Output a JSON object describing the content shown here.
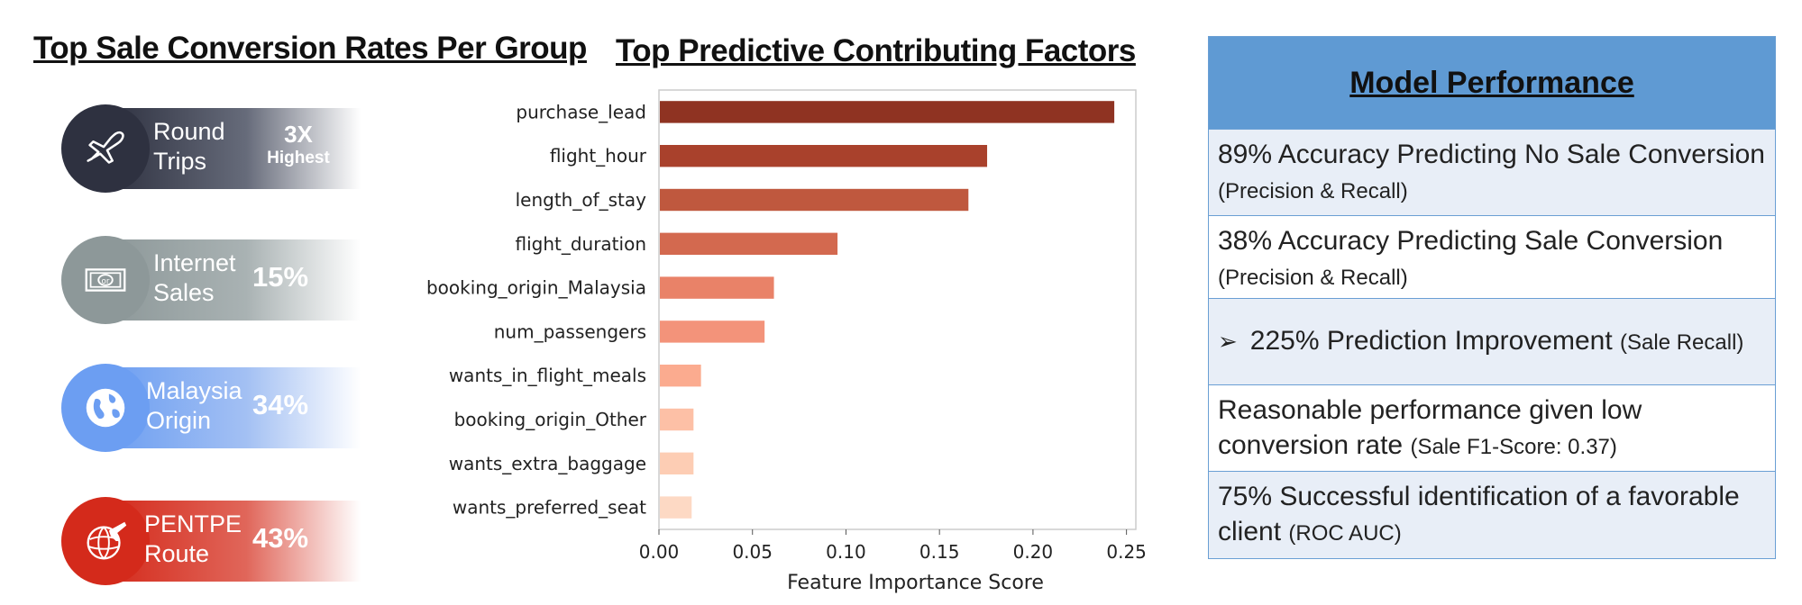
{
  "left_panel": {
    "title": "Top Sale Conversion Rates Per Group",
    "groups": [
      {
        "label_line1": "Round",
        "label_line2": "Trips",
        "stat_big": "3X",
        "stat_small": "Highest",
        "color": "#2e3140",
        "icon": "airplane-icon"
      },
      {
        "label_line1": "Internet",
        "label_line2": "Sales",
        "stat": "15%",
        "color": "#8d9899",
        "icon": "money-icon"
      },
      {
        "label_line1": "Malaysia",
        "label_line2": "Origin",
        "stat": "34%",
        "color": "#6c9ef2",
        "icon": "globe-icon"
      },
      {
        "label_line1": "PENTPE",
        "label_line2": "Route",
        "stat": "43%",
        "color": "#d42a1b",
        "icon": "globe-plane-icon"
      }
    ]
  },
  "chart_data": {
    "type": "bar",
    "orientation": "horizontal",
    "title": "Top Predictive Contributing Factors",
    "xlabel": "Feature Importance Score",
    "ylabel": "",
    "xlim": [
      0,
      0.255
    ],
    "xticks": [
      "0.00",
      "0.05",
      "0.10",
      "0.15",
      "0.20",
      "0.25"
    ],
    "categories": [
      "purchase_lead",
      "flight_hour",
      "length_of_stay",
      "flight_duration",
      "booking_origin_Malaysia",
      "num_passengers",
      "wants_in_flight_meals",
      "booking_origin_Other",
      "wants_extra_baggage",
      "wants_preferred_seat"
    ],
    "values": [
      0.243,
      0.175,
      0.165,
      0.095,
      0.061,
      0.056,
      0.022,
      0.018,
      0.018,
      0.017
    ],
    "colors": [
      "#8f3322",
      "#a9412c",
      "#bf583e",
      "#d3694f",
      "#e98268",
      "#f3937a",
      "#fbab8f",
      "#fdc0a6",
      "#fdcdb4",
      "#fdd9c4"
    ],
    "grid": false
  },
  "performance": {
    "title": "Model Performance",
    "rows": [
      {
        "main": "89% Accuracy Predicting No Sale Conversion",
        "note": "(Precision & Recall)"
      },
      {
        "main": "38% Accuracy Predicting Sale Conversion",
        "note": "(Precision & Recall)"
      },
      {
        "bullet": "➢",
        "main": "225% Prediction Improvement",
        "note": "(Sale Recall)"
      },
      {
        "main": "Reasonable performance given low conversion rate",
        "note": "(Sale F1-Score: 0.37)"
      },
      {
        "main": "75% Successful identification of a favorable client",
        "note": "(ROC AUC)"
      }
    ]
  }
}
